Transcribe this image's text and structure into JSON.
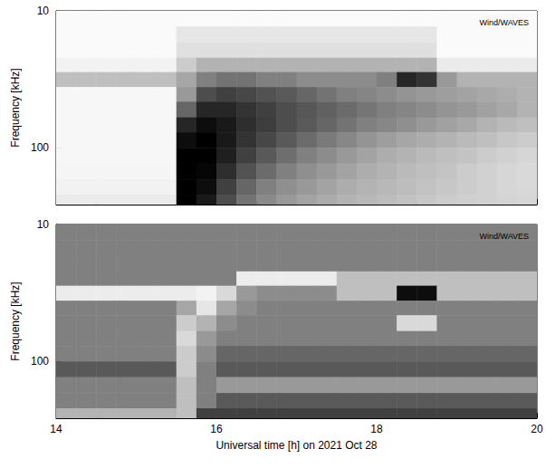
{
  "chart_data": [
    {
      "type": "heatmap",
      "annotation": "Wind/WAVES",
      "ylabel": "Frequency [kHz]",
      "xlim": [
        14,
        20
      ],
      "xticks": [
        14,
        16,
        18,
        20
      ],
      "ylim": [
        10,
        260
      ],
      "yticks": [
        10,
        100
      ],
      "log": "y",
      "tick_labels": "y",
      "zlim": [
        0,
        1
      ],
      "x_edges": [
        14,
        14.25,
        14.5,
        14.75,
        15,
        15.25,
        15.5,
        15.75,
        16,
        16.25,
        16.5,
        16.75,
        17,
        17.25,
        17.5,
        17.75,
        18,
        18.25,
        18.5,
        18.75,
        19,
        19.25,
        19.5,
        19.75,
        20
      ],
      "y_edges": [
        10,
        13,
        17,
        22,
        28,
        36,
        46,
        60,
        77,
        100,
        130,
        170,
        220,
        260
      ],
      "cells": [
        [
          0.02,
          0.02,
          0.02,
          0.02,
          0.02,
          0.02,
          0.02,
          0.02,
          0.02,
          0.02,
          0.02,
          0.02,
          0.02,
          0.02,
          0.02,
          0.02,
          0.02,
          0.02,
          0.02,
          0.02,
          0.02,
          0.02,
          0.02,
          0.02
        ],
        [
          0.02,
          0.02,
          0.02,
          0.02,
          0.02,
          0.02,
          0.1,
          0.1,
          0.1,
          0.1,
          0.1,
          0.1,
          0.1,
          0.1,
          0.1,
          0.1,
          0.1,
          0.1,
          0.1,
          0.02,
          0.02,
          0.02,
          0.02,
          0.02
        ],
        [
          0.02,
          0.02,
          0.02,
          0.02,
          0.02,
          0.02,
          0.12,
          0.12,
          0.12,
          0.12,
          0.12,
          0.12,
          0.12,
          0.12,
          0.12,
          0.12,
          0.12,
          0.12,
          0.12,
          0.02,
          0.02,
          0.02,
          0.02,
          0.02
        ],
        [
          0.05,
          0.05,
          0.05,
          0.05,
          0.05,
          0.05,
          0.2,
          0.3,
          0.3,
          0.3,
          0.3,
          0.3,
          0.3,
          0.3,
          0.3,
          0.3,
          0.3,
          0.3,
          0.3,
          0.08,
          0.08,
          0.08,
          0.08,
          0.08
        ],
        [
          0.25,
          0.25,
          0.25,
          0.25,
          0.25,
          0.25,
          0.35,
          0.5,
          0.55,
          0.55,
          0.5,
          0.5,
          0.45,
          0.45,
          0.45,
          0.45,
          0.5,
          0.85,
          0.8,
          0.4,
          0.3,
          0.3,
          0.3,
          0.3
        ],
        [
          0.03,
          0.03,
          0.03,
          0.03,
          0.03,
          0.03,
          0.4,
          0.7,
          0.75,
          0.72,
          0.68,
          0.65,
          0.6,
          0.55,
          0.5,
          0.48,
          0.45,
          0.42,
          0.4,
          0.38,
          0.36,
          0.34,
          0.32,
          0.3
        ],
        [
          0.03,
          0.03,
          0.03,
          0.03,
          0.03,
          0.03,
          0.6,
          0.85,
          0.85,
          0.8,
          0.75,
          0.7,
          0.66,
          0.62,
          0.58,
          0.54,
          0.5,
          0.48,
          0.45,
          0.42,
          0.4,
          0.37,
          0.34,
          0.3
        ],
        [
          0.03,
          0.03,
          0.03,
          0.03,
          0.03,
          0.03,
          0.85,
          0.95,
          0.9,
          0.82,
          0.76,
          0.7,
          0.65,
          0.6,
          0.55,
          0.5,
          0.47,
          0.44,
          0.4,
          0.37,
          0.34,
          0.3,
          0.27,
          0.25
        ],
        [
          0.03,
          0.03,
          0.03,
          0.03,
          0.03,
          0.03,
          0.95,
          1,
          0.9,
          0.8,
          0.72,
          0.65,
          0.58,
          0.52,
          0.47,
          0.42,
          0.38,
          0.35,
          0.32,
          0.3,
          0.27,
          0.25,
          0.22,
          0.2
        ],
        [
          0.03,
          0.03,
          0.03,
          0.03,
          0.03,
          0.03,
          1,
          1,
          0.88,
          0.75,
          0.65,
          0.57,
          0.5,
          0.45,
          0.4,
          0.36,
          0.32,
          0.3,
          0.27,
          0.25,
          0.23,
          0.2,
          0.18,
          0.16
        ],
        [
          0.04,
          0.04,
          0.04,
          0.04,
          0.04,
          0.04,
          1,
          0.98,
          0.82,
          0.68,
          0.58,
          0.5,
          0.44,
          0.4,
          0.36,
          0.32,
          0.3,
          0.27,
          0.25,
          0.23,
          0.2,
          0.18,
          0.16,
          0.15
        ],
        [
          0.05,
          0.05,
          0.05,
          0.05,
          0.05,
          0.05,
          1,
          0.95,
          0.75,
          0.6,
          0.5,
          0.44,
          0.4,
          0.36,
          0.32,
          0.3,
          0.28,
          0.26,
          0.24,
          0.22,
          0.2,
          0.18,
          0.16,
          0.15
        ],
        [
          0.08,
          0.08,
          0.08,
          0.08,
          0.08,
          0.08,
          1,
          0.9,
          0.7,
          0.55,
          0.46,
          0.4,
          0.36,
          0.33,
          0.3,
          0.28,
          0.26,
          0.24,
          0.22,
          0.2,
          0.19,
          0.18,
          0.17,
          0.16
        ]
      ]
    },
    {
      "type": "heatmap",
      "annotation": "Wind/WAVES",
      "ylabel": "Frequency [kHz]",
      "xlabel": "Universal time [h] on 2021 Oct 28",
      "xlim": [
        14,
        20
      ],
      "xticks": [
        14,
        16,
        18,
        20
      ],
      "ylim": [
        10,
        260
      ],
      "yticks": [
        10,
        100
      ],
      "log": "y",
      "zlim": [
        1,
        -1
      ],
      "x_edges": [
        14,
        14.25,
        14.5,
        14.75,
        15,
        15.25,
        15.5,
        15.75,
        16,
        16.25,
        16.5,
        16.75,
        17,
        17.25,
        17.5,
        17.75,
        18,
        18.25,
        18.5,
        18.75,
        19,
        19.25,
        19.5,
        19.75,
        20
      ],
      "y_edges": [
        10,
        13,
        17,
        22,
        28,
        36,
        46,
        60,
        77,
        100,
        130,
        170,
        220,
        260
      ],
      "cells": [
        [
          0,
          0,
          0,
          0,
          0,
          0,
          0,
          0,
          0,
          0,
          0,
          0,
          0,
          0,
          0,
          0,
          0,
          0,
          0,
          0,
          0,
          0,
          0,
          0
        ],
        [
          0,
          0,
          0,
          0,
          0,
          0,
          0,
          0,
          0,
          0,
          0,
          0,
          0,
          0,
          0,
          0,
          0,
          0,
          0,
          0,
          0,
          0,
          0,
          0
        ],
        [
          0,
          0,
          0,
          0,
          0,
          0,
          0,
          0,
          0,
          0,
          0,
          0,
          0,
          0,
          0,
          0,
          0,
          0,
          0,
          0,
          0,
          0,
          0,
          0
        ],
        [
          0,
          0,
          0,
          0,
          0,
          0,
          0,
          0,
          0,
          0.85,
          0.85,
          0.85,
          0.85,
          0.85,
          0.5,
          0.5,
          0.5,
          0.5,
          0.5,
          0.5,
          0.5,
          0.5,
          0.5,
          0.5
        ],
        [
          0.85,
          0.85,
          0.85,
          0.85,
          0.85,
          0.85,
          0.85,
          0.9,
          0.7,
          0.2,
          0.1,
          0.1,
          0.1,
          0.1,
          0.5,
          0.5,
          0.5,
          -0.9,
          -0.9,
          0.5,
          0.5,
          0.5,
          0.5,
          0.5
        ],
        [
          0,
          0,
          0,
          0,
          0,
          0,
          0.3,
          0.8,
          0.3,
          0.1,
          0,
          0,
          0,
          0,
          0,
          0,
          0,
          0,
          0,
          0,
          0,
          0,
          0,
          0
        ],
        [
          0,
          0,
          0,
          0,
          0,
          0,
          0.6,
          0.4,
          0.1,
          0,
          0,
          0,
          0,
          0,
          0,
          0,
          0,
          0.7,
          0.7,
          0,
          0,
          0,
          0,
          0
        ],
        [
          0,
          0,
          0,
          0,
          0,
          0,
          0.7,
          0.2,
          0,
          0,
          0,
          0,
          0,
          0,
          0,
          0,
          0,
          0,
          0,
          0,
          0,
          0,
          0,
          0
        ],
        [
          0,
          0,
          0,
          0,
          0,
          0,
          0.6,
          0.1,
          -0.2,
          -0.2,
          -0.2,
          -0.2,
          -0.2,
          -0.2,
          -0.2,
          -0.2,
          -0.2,
          -0.2,
          -0.2,
          -0.2,
          -0.2,
          -0.2,
          -0.2,
          -0.2
        ],
        [
          -0.3,
          -0.3,
          -0.3,
          -0.3,
          -0.3,
          -0.3,
          0.6,
          0,
          -0.3,
          -0.3,
          -0.3,
          -0.3,
          -0.3,
          -0.3,
          -0.3,
          -0.3,
          -0.3,
          -0.3,
          -0.3,
          -0.3,
          -0.3,
          -0.3,
          -0.3,
          -0.3
        ],
        [
          0,
          0,
          0,
          0,
          0,
          0,
          0.5,
          0,
          0.2,
          0.2,
          0.2,
          0.2,
          0.2,
          0.2,
          0.2,
          0.2,
          0.2,
          0.2,
          0.2,
          0.2,
          0.2,
          0.2,
          0.2,
          0.2
        ],
        [
          0,
          0,
          0,
          0,
          0,
          0,
          0.5,
          0,
          -0.3,
          -0.3,
          -0.3,
          -0.3,
          -0.3,
          -0.3,
          -0.3,
          -0.3,
          -0.3,
          -0.3,
          -0.3,
          -0.3,
          -0.3,
          -0.3,
          -0.3,
          -0.3
        ],
        [
          0.4,
          0.4,
          0.4,
          0.4,
          0.4,
          0.4,
          0.5,
          -0.5,
          -0.5,
          -0.5,
          -0.5,
          -0.5,
          -0.5,
          -0.5,
          -0.5,
          -0.5,
          -0.5,
          -0.5,
          -0.5,
          -0.5,
          -0.5,
          -0.5,
          -0.5,
          -0.5
        ]
      ]
    }
  ]
}
